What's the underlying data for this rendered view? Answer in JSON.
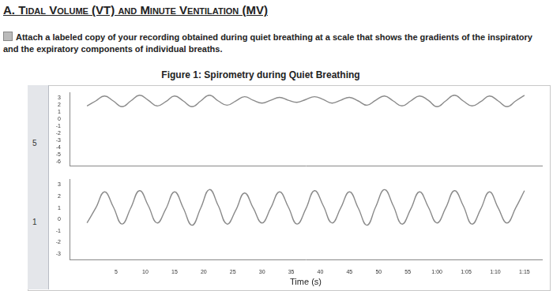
{
  "header": {
    "title": "A. Tidal Volume (VT) and Minute Ventilation (MV)",
    "instruction": "Attach a labeled copy of your recording obtained during quiet breathing at a scale that shows the gradients of the inspiratory and the expiratory components of individual breaths.",
    "figure_title": "Figure 1: Spirometry during Quiet Breathing"
  },
  "chart_data": [
    {
      "type": "line",
      "label": "5",
      "color": "#8a8a8a",
      "grid": false,
      "tick_labels": "y",
      "x": [
        0,
        1.5,
        3,
        4.5,
        6,
        7.5,
        9,
        10.5,
        12,
        13.5,
        15,
        16.5,
        18,
        19.5,
        21,
        22.5,
        24,
        25.5,
        27,
        28.5,
        30,
        31.5,
        33,
        34.5,
        36,
        37.5,
        39,
        40.5,
        42,
        43.5,
        45,
        46.5,
        48,
        49.5,
        51,
        52.5,
        54,
        55.5,
        57,
        58.5,
        60,
        61.5,
        63,
        64.5,
        66,
        67.5,
        69,
        70.5,
        72,
        73.5,
        75
      ],
      "values": [
        1.9,
        2.6,
        3.3,
        2.6,
        1.8,
        2.6,
        3.4,
        2.7,
        1.9,
        2.5,
        3.3,
        2.6,
        1.8,
        2.6,
        3.4,
        2.6,
        2.0,
        2.6,
        3.2,
        2.7,
        2.3,
        2.7,
        3.1,
        2.7,
        2.4,
        2.8,
        3.2,
        2.8,
        2.3,
        2.7,
        3.1,
        2.6,
        2.0,
        2.7,
        3.3,
        2.6,
        1.9,
        2.6,
        3.3,
        2.7,
        1.8,
        2.6,
        3.4,
        2.6,
        1.9,
        2.5,
        3.3,
        2.6,
        1.8,
        2.6,
        3.4
      ],
      "xlim": [
        -3,
        78
      ],
      "ylim": [
        -6.5,
        3.8
      ],
      "yticks": [
        -6,
        -5,
        -4,
        -3,
        -2,
        -1,
        0,
        1,
        2,
        3
      ]
    },
    {
      "type": "line",
      "label": "1",
      "color": "#8a8a8a",
      "grid": false,
      "xlabel": "Time (s)",
      "x": [
        0,
        1.5,
        3,
        4.5,
        6,
        7.5,
        9,
        10.5,
        12,
        13.5,
        15,
        16.5,
        18,
        19.5,
        21,
        22.5,
        24,
        25.5,
        27,
        28.5,
        30,
        31.5,
        33,
        34.5,
        36,
        37.5,
        39,
        40.5,
        42,
        43.5,
        45,
        46.5,
        48,
        49.5,
        51,
        52.5,
        54,
        55.5,
        57,
        58.5,
        60,
        61.5,
        63,
        64.5,
        66,
        67.5,
        69,
        70.5,
        72,
        73.5,
        75
      ],
      "values": [
        -0.3,
        1.0,
        2.4,
        1.1,
        -0.4,
        1.0,
        2.5,
        1.2,
        -0.3,
        0.9,
        2.4,
        1.0,
        -0.5,
        1.0,
        2.6,
        1.2,
        -0.4,
        0.8,
        2.3,
        1.0,
        -0.3,
        1.0,
        2.4,
        1.1,
        -0.4,
        0.9,
        2.5,
        1.2,
        -0.3,
        1.0,
        2.4,
        1.0,
        -0.5,
        1.1,
        2.6,
        1.2,
        -0.4,
        0.9,
        2.4,
        1.1,
        -0.3,
        1.0,
        2.5,
        1.2,
        -0.4,
        0.9,
        2.4,
        1.0,
        -0.3,
        1.0,
        2.5
      ],
      "xlim": [
        -3,
        78
      ],
      "ylim": [
        -3.5,
        3.5
      ],
      "yticks": [
        -3,
        -2,
        -1,
        0,
        1,
        2,
        3
      ],
      "xticks": [
        5,
        10,
        15,
        20,
        25,
        30,
        35,
        40,
        45,
        50,
        55,
        {
          "value": 60,
          "label": "1:00"
        },
        {
          "value": 65,
          "label": "1:05"
        },
        {
          "value": 70,
          "label": "1:10"
        },
        {
          "value": 75,
          "label": "1:15"
        }
      ]
    }
  ]
}
